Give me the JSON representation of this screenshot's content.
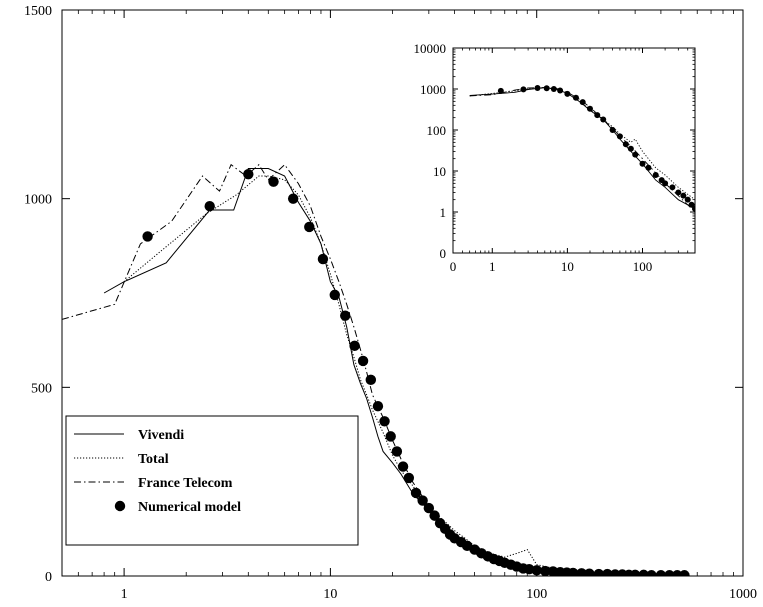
{
  "chart_data": [
    {
      "type": "line",
      "x_scale": "log",
      "y_scale": "linear",
      "xlim": [
        0.5,
        1000
      ],
      "ylim": [
        0,
        1500
      ],
      "x_ticks": [
        1,
        10,
        100,
        1000
      ],
      "x_tick_labels": [
        "1",
        "10",
        "100",
        "1000"
      ],
      "y_ticks": [
        0,
        500,
        1000,
        1500
      ],
      "y_tick_labels": [
        "0",
        "500",
        "1000",
        "1500"
      ],
      "grid": false,
      "legend_placement": "bottom-left",
      "series": [
        {
          "name": "Vivendi",
          "style": "solid",
          "x": [
            0.8,
            1.0,
            1.6,
            2.6,
            3.4,
            4.0,
            5.0,
            6.0,
            7.0,
            8.0,
            9.0,
            10,
            11,
            12,
            13,
            14,
            15,
            16,
            17,
            18,
            20,
            22,
            25,
            28,
            30,
            33,
            36,
            40,
            45,
            50,
            60,
            70,
            80,
            100,
            150,
            200,
            300,
            400,
            500
          ],
          "y": [
            750,
            780,
            830,
            970,
            970,
            1080,
            1080,
            1060,
            990,
            940,
            880,
            780,
            740,
            660,
            560,
            510,
            470,
            420,
            370,
            330,
            300,
            270,
            220,
            190,
            180,
            150,
            120,
            100,
            80,
            60,
            40,
            30,
            25,
            15,
            10,
            6,
            5,
            5,
            5
          ]
        },
        {
          "name": "Total",
          "style": "dotted",
          "x": [
            1.0,
            1.5,
            2.5,
            3.5,
            4.5,
            5.0,
            6.0,
            7.0,
            8.0,
            9.0,
            10,
            11,
            12,
            13,
            14,
            15,
            16,
            18,
            20,
            22,
            25,
            28,
            30,
            35,
            40,
            45,
            50,
            60,
            70,
            80,
            90,
            100,
            150,
            200,
            300,
            500
          ],
          "y": [
            780,
            860,
            960,
            1010,
            1060,
            1060,
            1050,
            1010,
            950,
            880,
            800,
            720,
            640,
            580,
            520,
            480,
            440,
            380,
            320,
            280,
            240,
            200,
            180,
            150,
            120,
            100,
            80,
            60,
            50,
            60,
            70,
            30,
            10,
            8,
            5,
            5
          ]
        },
        {
          "name": "France Telecom",
          "style": "dashdot",
          "x": [
            0.5,
            0.9,
            1.2,
            1.7,
            2.4,
            2.9,
            3.3,
            3.9,
            4.5,
            5.0,
            6.0,
            7.0,
            8.0,
            9.0,
            10,
            11,
            12,
            13,
            14,
            15,
            16,
            18,
            20,
            22,
            25,
            28,
            30,
            35,
            40,
            45,
            50,
            60,
            70,
            80,
            100,
            150,
            200,
            300,
            500
          ],
          "y": [
            680,
            720,
            880,
            940,
            1060,
            1020,
            1090,
            1060,
            1090,
            1050,
            1090,
            1040,
            980,
            900,
            840,
            780,
            720,
            660,
            600,
            540,
            480,
            420,
            360,
            310,
            250,
            210,
            180,
            140,
            110,
            90,
            70,
            50,
            40,
            30,
            20,
            10,
            8,
            5,
            5
          ]
        },
        {
          "name": "Numerical model",
          "style": "markers",
          "x": [
            1.3,
            2.6,
            4.0,
            5.3,
            6.6,
            7.9,
            9.2,
            10.5,
            11.8,
            13.1,
            14.4,
            15.7,
            17,
            18.3,
            19.6,
            21,
            22.5,
            24,
            26,
            28,
            30,
            32,
            34,
            36,
            38,
            40,
            43,
            46,
            50,
            54,
            58,
            62,
            66,
            70,
            75,
            80,
            86,
            92,
            100,
            110,
            120,
            130,
            140,
            150,
            165,
            180,
            200,
            220,
            240,
            260,
            280,
            300,
            330,
            360,
            400,
            440,
            480,
            520
          ],
          "y": [
            900,
            980,
            1065,
            1045,
            1000,
            925,
            840,
            745,
            690,
            610,
            570,
            520,
            450,
            410,
            370,
            330,
            290,
            260,
            220,
            200,
            180,
            160,
            140,
            125,
            110,
            100,
            90,
            80,
            70,
            60,
            52,
            45,
            40,
            35,
            30,
            25,
            20,
            18,
            15,
            13,
            12,
            10,
            9,
            8,
            7,
            6,
            5,
            5,
            4,
            4,
            3,
            3,
            3,
            2,
            2,
            2,
            2,
            2
          ]
        }
      ]
    },
    {
      "type": "line",
      "x_scale": "log",
      "y_scale": "log",
      "xlim": [
        0.3,
        500
      ],
      "ylim": [
        0.1,
        10000
      ],
      "x_ticks": [
        0.3,
        1,
        10,
        100
      ],
      "x_tick_labels": [
        "0",
        "1",
        "10",
        "100"
      ],
      "y_ticks": [
        0.1,
        1,
        10,
        100,
        1000,
        10000
      ],
      "y_tick_labels": [
        "0",
        "1",
        "10",
        "100",
        "1000",
        "10000"
      ],
      "grid": false,
      "legend_placement": "none",
      "series": [
        {
          "style": "solid",
          "x": [
            0.5,
            1,
            2,
            3,
            5,
            7,
            10,
            15,
            20,
            30,
            40,
            50,
            70,
            100,
            150,
            200,
            300,
            400,
            500
          ],
          "y": [
            700,
            750,
            830,
            970,
            1080,
            1000,
            780,
            470,
            300,
            180,
            100,
            60,
            30,
            15,
            6,
            4,
            2,
            1.5,
            1.2
          ]
        },
        {
          "style": "dotted",
          "x": [
            0.5,
            1,
            2,
            3,
            5,
            7,
            10,
            15,
            20,
            30,
            40,
            50,
            70,
            80,
            100,
            150,
            200,
            300,
            500
          ],
          "y": [
            680,
            780,
            900,
            1000,
            1060,
            1010,
            800,
            480,
            320,
            180,
            120,
            80,
            50,
            60,
            30,
            12,
            8,
            4,
            2
          ]
        },
        {
          "style": "dashdot",
          "x": [
            0.5,
            1,
            2,
            3,
            5,
            7,
            10,
            15,
            20,
            30,
            40,
            50,
            70,
            100,
            150,
            200,
            300,
            400,
            500
          ],
          "y": [
            680,
            720,
            940,
            1060,
            1090,
            1040,
            840,
            540,
            360,
            180,
            110,
            70,
            40,
            20,
            9,
            5,
            2.5,
            1.5,
            1
          ]
        },
        {
          "style": "markers",
          "x": [
            1.3,
            2.6,
            4,
            5.3,
            6.6,
            8,
            10,
            13,
            16,
            20,
            25,
            30,
            40,
            50,
            60,
            70,
            80,
            100,
            120,
            150,
            180,
            200,
            250,
            300,
            350,
            400,
            450,
            500
          ],
          "y": [
            900,
            980,
            1060,
            1045,
            1000,
            920,
            760,
            610,
            480,
            330,
            230,
            180,
            100,
            70,
            45,
            35,
            25,
            15,
            12,
            8,
            6,
            5,
            4,
            3,
            2.5,
            2,
            1.5,
            1.2
          ]
        }
      ]
    }
  ]
}
